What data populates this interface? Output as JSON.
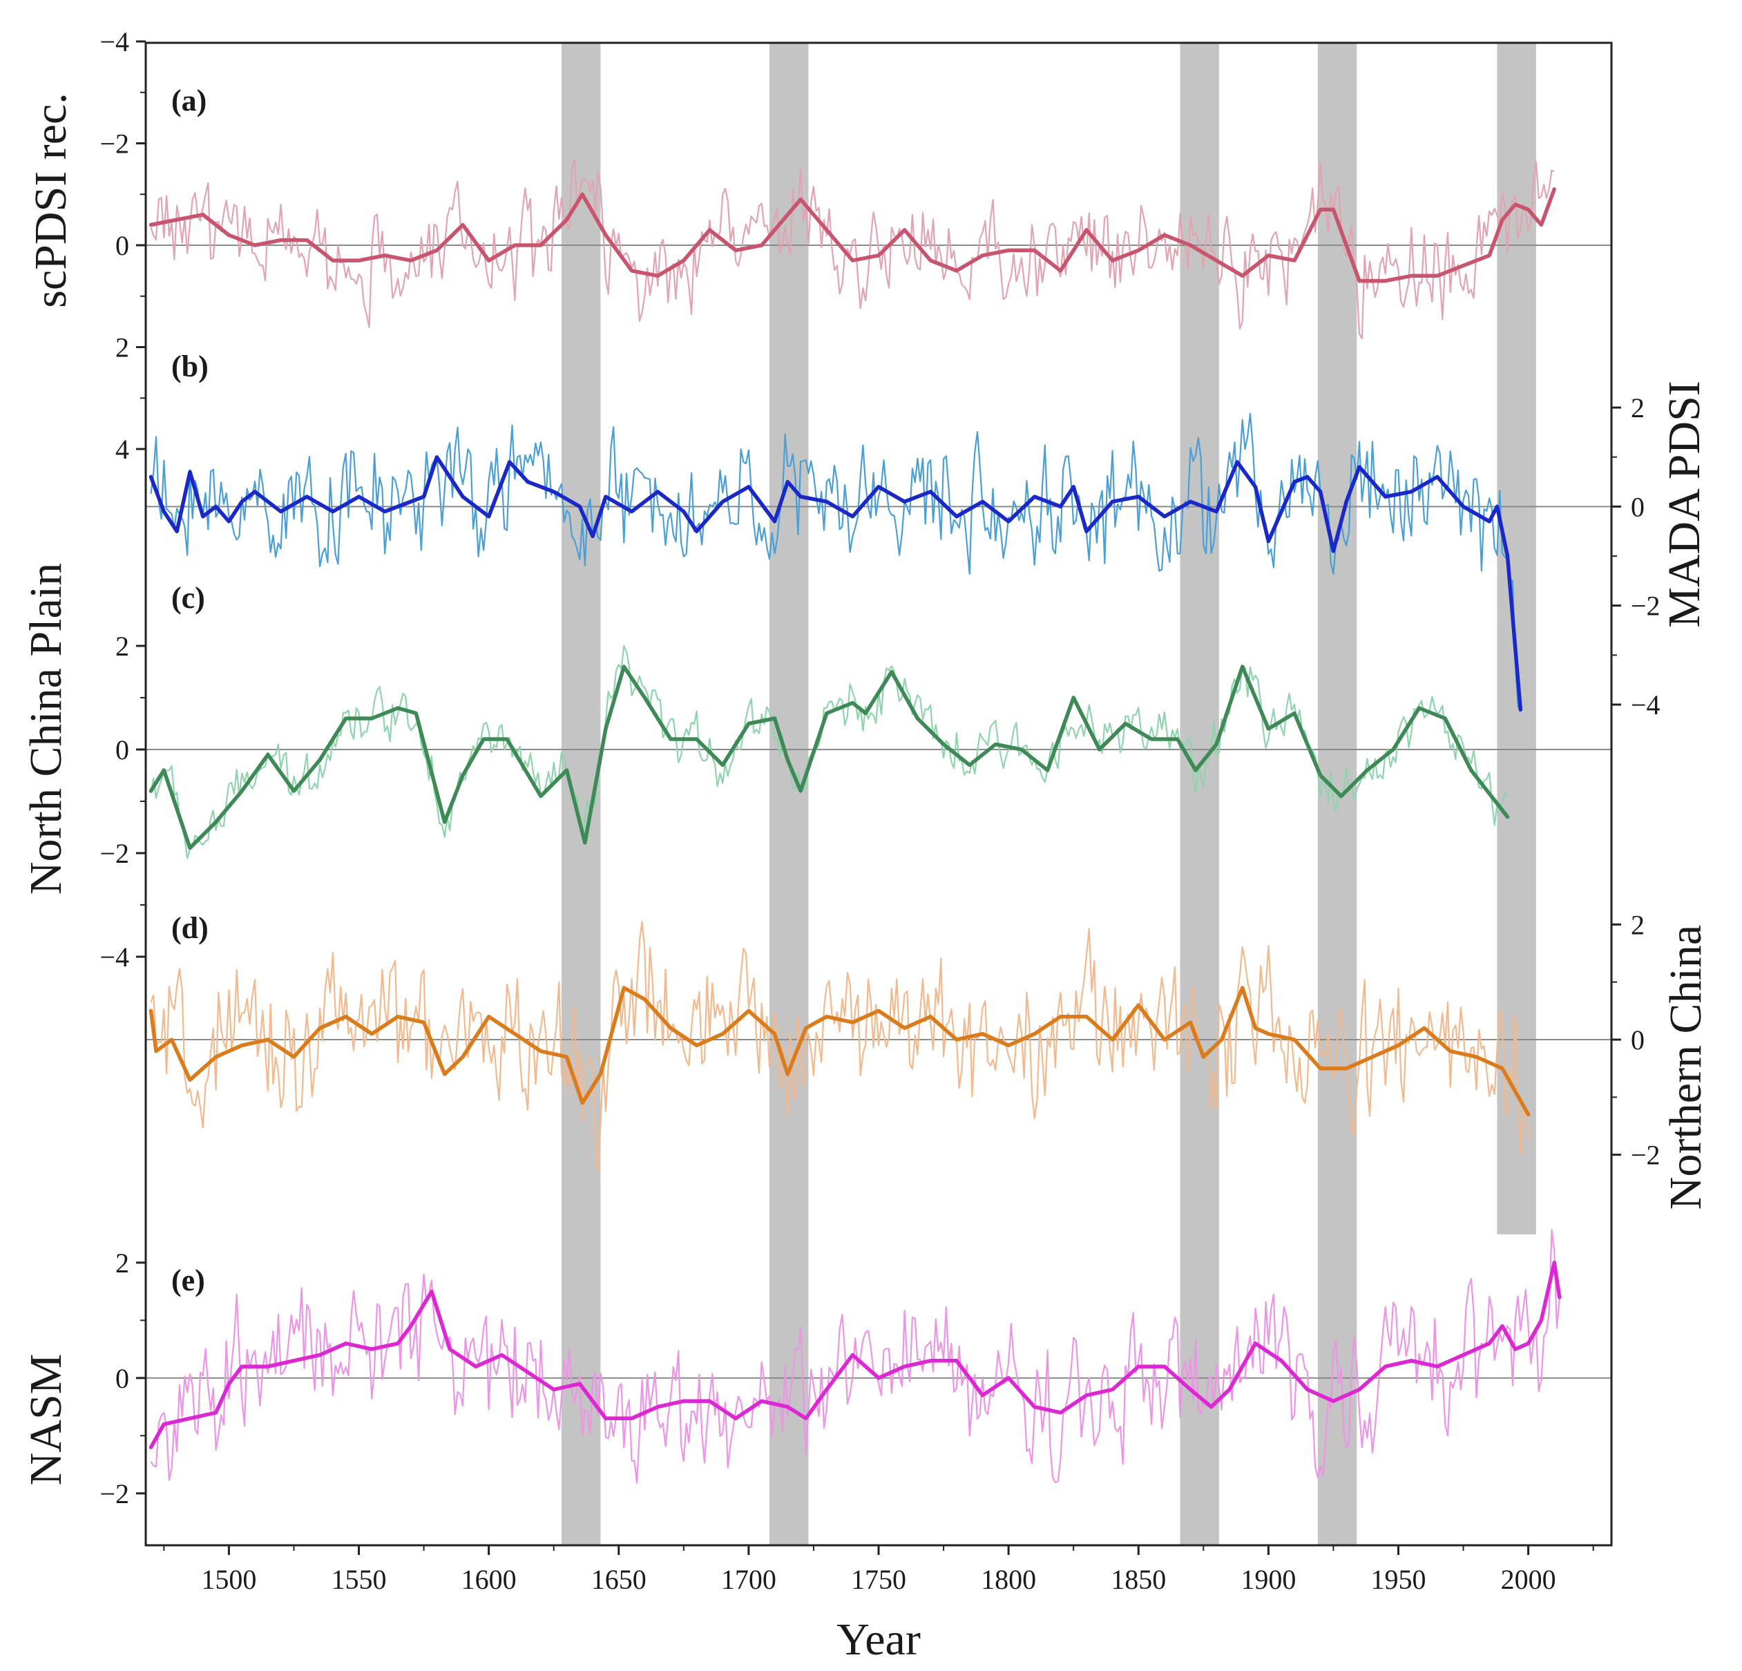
{
  "chart_data": {
    "type": "line",
    "xlabel": "Year",
    "xlim": [
      1468,
      2032
    ],
    "xticks": [
      1500,
      1550,
      1600,
      1650,
      1700,
      1750,
      1800,
      1850,
      1900,
      1950,
      2000
    ],
    "shaded_intervals": [
      [
        1628,
        1643
      ],
      [
        1708,
        1723
      ],
      [
        1866,
        1881
      ],
      [
        1919,
        1934
      ],
      [
        1988,
        2003
      ]
    ],
    "panels": [
      {
        "id": "a",
        "label": "(a)",
        "ylabel": "scPDSI rec.",
        "axis_side": "left",
        "ylim": [
          -4,
          4
        ],
        "yticks": [
          4,
          2,
          0,
          -2,
          -4
        ],
        "ytick_labels": [
          "4",
          "2",
          "0",
          "−2",
          "−4"
        ],
        "raw_color": "#e2a3b2",
        "smooth_color": "#c8546e",
        "x_start": 1470,
        "x_end": 2010,
        "noise_amp": 0.75,
        "series": [
          {
            "name": "raw",
            "values": []
          },
          {
            "name": "smoothed",
            "x": [
              1470,
              1480,
              1490,
              1500,
              1510,
              1520,
              1530,
              1540,
              1550,
              1560,
              1570,
              1580,
              1590,
              1600,
              1610,
              1620,
              1630,
              1636,
              1645,
              1655,
              1665,
              1675,
              1685,
              1695,
              1705,
              1715,
              1720,
              1730,
              1740,
              1750,
              1760,
              1770,
              1780,
              1790,
              1800,
              1810,
              1820,
              1830,
              1840,
              1850,
              1860,
              1870,
              1880,
              1890,
              1900,
              1910,
              1920,
              1925,
              1935,
              1945,
              1955,
              1965,
              1975,
              1985,
              1990,
              1995,
              2000,
              2005,
              2010
            ],
            "values": [
              -0.4,
              -0.5,
              -0.6,
              -0.2,
              0.0,
              -0.1,
              -0.1,
              0.3,
              0.3,
              0.2,
              0.3,
              0.1,
              -0.4,
              0.3,
              0.0,
              0.0,
              -0.5,
              -1.0,
              -0.2,
              0.5,
              0.6,
              0.3,
              -0.3,
              0.1,
              0.0,
              -0.6,
              -0.9,
              -0.3,
              0.3,
              0.2,
              -0.3,
              0.3,
              0.5,
              0.2,
              0.1,
              0.1,
              0.5,
              -0.3,
              0.3,
              0.1,
              -0.2,
              0.0,
              0.3,
              0.6,
              0.2,
              0.3,
              -0.7,
              -0.7,
              0.7,
              0.7,
              0.6,
              0.6,
              0.4,
              0.2,
              -0.5,
              -0.8,
              -0.7,
              -0.4,
              -1.1
            ]
          }
        ]
      },
      {
        "id": "b",
        "label": "(b)",
        "ylabel": "MADA PDSI",
        "axis_side": "right",
        "ylim": [
          -4,
          2
        ],
        "yticks": [
          2,
          0,
          -2,
          -4
        ],
        "ytick_labels": [
          "2",
          "0",
          "−2",
          "−4"
        ],
        "raw_color": "#4a9fd6",
        "smooth_color": "#1a28c8",
        "x_start": 1470,
        "x_end": 1997,
        "noise_amp": 0.95,
        "series": [
          {
            "name": "raw",
            "values": []
          },
          {
            "name": "smoothed",
            "x": [
              1470,
              1475,
              1480,
              1485,
              1490,
              1495,
              1500,
              1505,
              1510,
              1520,
              1530,
              1540,
              1550,
              1560,
              1575,
              1580,
              1590,
              1600,
              1608,
              1615,
              1625,
              1635,
              1640,
              1645,
              1655,
              1665,
              1675,
              1680,
              1690,
              1700,
              1710,
              1715,
              1720,
              1730,
              1740,
              1750,
              1760,
              1770,
              1780,
              1790,
              1800,
              1810,
              1820,
              1825,
              1830,
              1840,
              1850,
              1860,
              1870,
              1880,
              1888,
              1895,
              1900,
              1910,
              1915,
              1920,
              1925,
              1930,
              1935,
              1945,
              1955,
              1965,
              1975,
              1985,
              1988,
              1992,
              1997
            ],
            "values": [
              0.6,
              -0.1,
              -0.5,
              0.7,
              -0.2,
              0.0,
              -0.3,
              0.1,
              0.3,
              -0.1,
              0.2,
              -0.1,
              0.2,
              -0.1,
              0.2,
              1.0,
              0.2,
              -0.2,
              0.9,
              0.5,
              0.3,
              0.0,
              -0.6,
              0.2,
              -0.1,
              0.3,
              -0.1,
              -0.5,
              0.1,
              0.4,
              -0.3,
              0.5,
              0.2,
              0.1,
              -0.2,
              0.4,
              0.1,
              0.3,
              -0.2,
              0.1,
              -0.3,
              0.2,
              0.0,
              0.4,
              -0.5,
              0.1,
              0.2,
              -0.2,
              0.1,
              -0.1,
              0.9,
              0.4,
              -0.7,
              0.5,
              0.6,
              0.3,
              -0.9,
              0.1,
              0.8,
              0.2,
              0.3,
              0.6,
              0.0,
              -0.3,
              0.0,
              -1.0,
              -4.1
            ]
          }
        ]
      },
      {
        "id": "c",
        "label": "(c)",
        "ylabel": "North China Plain",
        "axis_side": "left",
        "ylim": [
          -4,
          2
        ],
        "yticks": [
          2,
          0,
          -2,
          -4
        ],
        "ytick_labels": [
          "2",
          "0",
          "−2",
          "−4"
        ],
        "raw_color": "#8fd4ae",
        "smooth_color": "#3e8a57",
        "x_start": 1470,
        "x_end": 1992,
        "noise_amp": 0.4,
        "series": [
          {
            "name": "raw",
            "values": []
          },
          {
            "name": "smoothed",
            "x": [
              1470,
              1475,
              1485,
              1495,
              1505,
              1515,
              1525,
              1535,
              1545,
              1555,
              1565,
              1572,
              1583,
              1590,
              1598,
              1607,
              1620,
              1630,
              1637,
              1645,
              1652,
              1660,
              1670,
              1680,
              1690,
              1700,
              1710,
              1715,
              1720,
              1730,
              1740,
              1745,
              1755,
              1765,
              1775,
              1785,
              1795,
              1805,
              1815,
              1825,
              1835,
              1845,
              1855,
              1865,
              1872,
              1880,
              1890,
              1900,
              1910,
              1920,
              1928,
              1938,
              1948,
              1958,
              1968,
              1978,
              1992
            ],
            "values": [
              -0.8,
              -0.4,
              -1.9,
              -1.4,
              -0.8,
              -0.1,
              -0.8,
              -0.2,
              0.6,
              0.6,
              0.8,
              0.7,
              -1.4,
              -0.5,
              0.2,
              0.2,
              -0.9,
              -0.4,
              -1.8,
              0.4,
              1.6,
              1.0,
              0.2,
              0.2,
              -0.3,
              0.5,
              0.6,
              -0.2,
              -0.8,
              0.7,
              0.9,
              0.7,
              1.5,
              0.6,
              0.1,
              -0.3,
              0.1,
              0.0,
              -0.4,
              1.0,
              0.0,
              0.5,
              0.2,
              0.2,
              -0.4,
              0.1,
              1.6,
              0.4,
              0.7,
              -0.5,
              -0.9,
              -0.4,
              0.0,
              0.8,
              0.6,
              -0.4,
              -1.3
            ]
          }
        ]
      },
      {
        "id": "d",
        "label": "(d)",
        "ylabel": "Northern China",
        "axis_side": "right",
        "ylim": [
          -3,
          3
        ],
        "yticks": [
          2,
          0,
          -2
        ],
        "ytick_labels": [
          "2",
          "0",
          "−2"
        ],
        "raw_color": "#f2b98e",
        "smooth_color": "#db7c1c",
        "x_start": 1470,
        "x_end": 2000,
        "noise_amp": 1.0,
        "series": [
          {
            "name": "raw",
            "values": []
          },
          {
            "name": "smoothed",
            "x": [
              1470,
              1472,
              1478,
              1485,
              1495,
              1505,
              1515,
              1525,
              1535,
              1545,
              1555,
              1565,
              1575,
              1583,
              1590,
              1600,
              1610,
              1620,
              1630,
              1636,
              1643,
              1652,
              1660,
              1670,
              1680,
              1690,
              1700,
              1710,
              1715,
              1722,
              1730,
              1740,
              1750,
              1760,
              1770,
              1780,
              1790,
              1800,
              1810,
              1820,
              1830,
              1840,
              1850,
              1860,
              1870,
              1875,
              1882,
              1890,
              1895,
              1900,
              1910,
              1920,
              1930,
              1940,
              1950,
              1960,
              1970,
              1980,
              1990,
              2000
            ],
            "values": [
              0.5,
              -0.2,
              0.0,
              -0.7,
              -0.3,
              -0.1,
              0.0,
              -0.3,
              0.2,
              0.4,
              0.1,
              0.4,
              0.3,
              -0.6,
              -0.3,
              0.4,
              0.1,
              -0.2,
              -0.3,
              -1.1,
              -0.6,
              0.9,
              0.7,
              0.2,
              -0.1,
              0.1,
              0.5,
              0.1,
              -0.6,
              0.2,
              0.4,
              0.3,
              0.5,
              0.2,
              0.4,
              0.0,
              0.1,
              -0.1,
              0.1,
              0.4,
              0.4,
              0.0,
              0.6,
              0.0,
              0.3,
              -0.3,
              0.0,
              0.9,
              0.2,
              0.1,
              0.0,
              -0.5,
              -0.5,
              -0.3,
              -0.1,
              0.2,
              -0.2,
              -0.3,
              -0.5,
              -1.3
            ]
          }
        ]
      },
      {
        "id": "e",
        "label": "(e)",
        "ylabel": "NASM",
        "axis_side": "left",
        "ylim": [
          -2.9,
          3.1
        ],
        "yticks": [
          2,
          0,
          -2
        ],
        "ytick_labels": [
          "2",
          "0",
          "−2"
        ],
        "raw_color": "#ec94e6",
        "smooth_color": "#dc28d2",
        "x_start": 1470,
        "x_end": 2012,
        "noise_amp": 0.9,
        "series": [
          {
            "name": "raw",
            "values": []
          },
          {
            "name": "smoothed",
            "x": [
              1470,
              1475,
              1485,
              1495,
              1500,
              1505,
              1515,
              1525,
              1535,
              1545,
              1555,
              1565,
              1570,
              1578,
              1585,
              1595,
              1605,
              1615,
              1625,
              1635,
              1645,
              1655,
              1665,
              1675,
              1685,
              1695,
              1705,
              1715,
              1722,
              1730,
              1740,
              1750,
              1760,
              1770,
              1780,
              1790,
              1800,
              1810,
              1820,
              1830,
              1840,
              1850,
              1860,
              1870,
              1878,
              1885,
              1895,
              1905,
              1915,
              1925,
              1935,
              1945,
              1955,
              1965,
              1975,
              1985,
              1990,
              1995,
              2000,
              2005,
              2010,
              2012
            ],
            "values": [
              -1.2,
              -0.8,
              -0.7,
              -0.6,
              -0.1,
              0.2,
              0.2,
              0.3,
              0.4,
              0.6,
              0.5,
              0.6,
              0.9,
              1.5,
              0.5,
              0.2,
              0.4,
              0.1,
              -0.2,
              -0.1,
              -0.7,
              -0.7,
              -0.5,
              -0.4,
              -0.4,
              -0.7,
              -0.4,
              -0.5,
              -0.7,
              -0.2,
              0.4,
              0.0,
              0.2,
              0.3,
              0.3,
              -0.3,
              0.0,
              -0.5,
              -0.6,
              -0.3,
              -0.2,
              0.2,
              0.2,
              -0.2,
              -0.5,
              -0.2,
              0.6,
              0.3,
              -0.2,
              -0.4,
              -0.2,
              0.2,
              0.3,
              0.2,
              0.4,
              0.6,
              0.9,
              0.5,
              0.6,
              1.0,
              2.0,
              1.4
            ]
          }
        ]
      }
    ]
  }
}
